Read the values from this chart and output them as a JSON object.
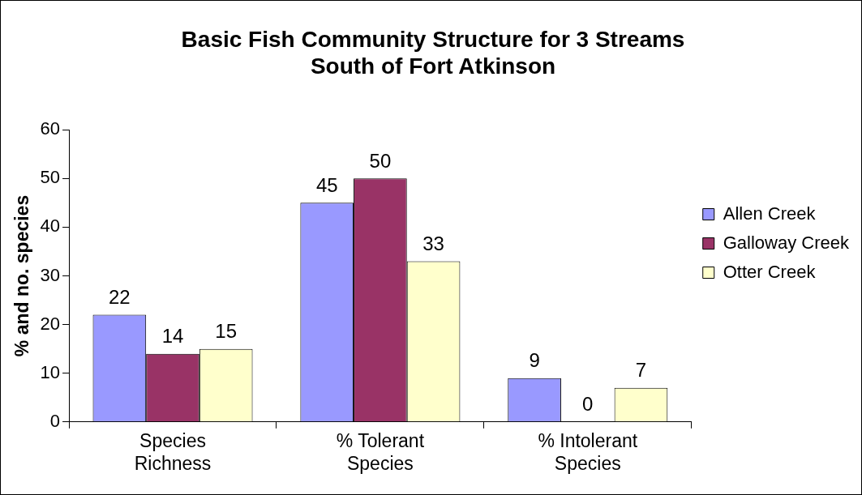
{
  "chart_data": {
    "type": "bar",
    "title": "Basic Fish Community Structure for 3 Streams South of Fort Atkinson",
    "ylabel": "% and no. species",
    "categories": [
      "Species Richness",
      "% Tolerant Species",
      "% Intolerant Species"
    ],
    "series": [
      {
        "name": "Allen Creek",
        "color": "#9999ff",
        "values": [
          22,
          45,
          9
        ]
      },
      {
        "name": "Galloway Creek",
        "color": "#993366",
        "values": [
          14,
          50,
          0
        ]
      },
      {
        "name": "Otter Creek",
        "color": "#ffffcc",
        "values": [
          15,
          33,
          7
        ]
      }
    ],
    "ylim": [
      0,
      60
    ],
    "yticks": [
      0,
      10,
      20,
      30,
      40,
      50,
      60
    ],
    "data_labels": true,
    "legend": "right",
    "grid": false
  }
}
